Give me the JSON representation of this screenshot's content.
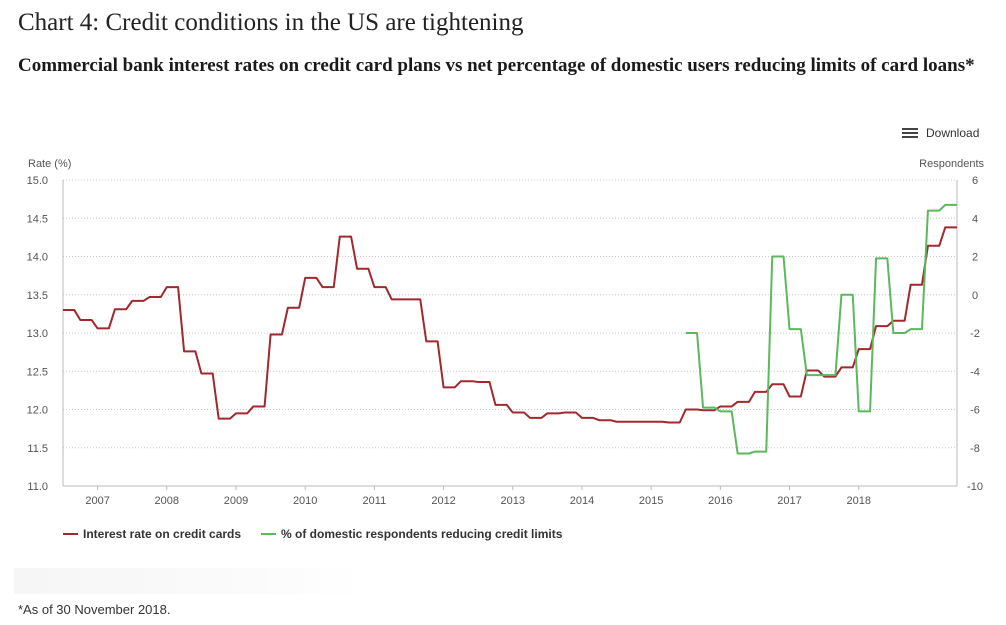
{
  "header": {
    "title": "Chart 4: Credit conditions in the US are tightening",
    "subtitle": "Commercial bank interest rates on credit card plans vs net percentage of domestic users reducing limits of card loans*"
  },
  "toolbar": {
    "download_label": "Download",
    "download_icon": "menu-icon"
  },
  "footnote": "*As of 30 November 2018.",
  "chart_data": {
    "type": "line",
    "left_axis": {
      "label": "Rate (%)",
      "ylim": [
        11.0,
        15.0
      ],
      "ticks": [
        "11.0",
        "11.5",
        "12.0",
        "12.5",
        "13.0",
        "13.5",
        "14.0",
        "14.5",
        "15.0"
      ]
    },
    "right_axis": {
      "label": "Respondents",
      "ylim": [
        -10,
        6
      ],
      "ticks": [
        "-10",
        "-8",
        "-6",
        "-4",
        "-2",
        "0",
        "2",
        "4",
        "6"
      ]
    },
    "x_axis": {
      "xlim": [
        2006.0,
        2018.92
      ],
      "ticks": [
        {
          "value": 2006.5,
          "label": "2007"
        },
        {
          "value": 2007.5,
          "label": "2008"
        },
        {
          "value": 2008.5,
          "label": "2009"
        },
        {
          "value": 2009.5,
          "label": "2010"
        },
        {
          "value": 2010.5,
          "label": "2011"
        },
        {
          "value": 2011.5,
          "label": "2012"
        },
        {
          "value": 2012.5,
          "label": "2013"
        },
        {
          "value": 2013.5,
          "label": "2014"
        },
        {
          "value": 2014.5,
          "label": "2015"
        },
        {
          "value": 2015.5,
          "label": "2016"
        },
        {
          "value": 2016.5,
          "label": "2017"
        },
        {
          "value": 2017.5,
          "label": "2018"
        }
      ]
    },
    "grid": true,
    "legend_position": "bottom-left",
    "series": [
      {
        "name": "Interest rate on credit cards",
        "axis": "left",
        "color": "#a1282c",
        "step": true,
        "points": [
          [
            2006.0,
            13.3
          ],
          [
            2006.25,
            13.17
          ],
          [
            2006.5,
            13.06
          ],
          [
            2006.75,
            13.31
          ],
          [
            2007.0,
            13.42
          ],
          [
            2007.25,
            13.47
          ],
          [
            2007.5,
            13.6
          ],
          [
            2007.75,
            12.76
          ],
          [
            2008.0,
            12.47
          ],
          [
            2008.25,
            11.88
          ],
          [
            2008.5,
            11.95
          ],
          [
            2008.75,
            12.04
          ],
          [
            2009.0,
            12.98
          ],
          [
            2009.25,
            13.33
          ],
          [
            2009.5,
            13.72
          ],
          [
            2009.75,
            13.6
          ],
          [
            2010.0,
            14.26
          ],
          [
            2010.25,
            13.84
          ],
          [
            2010.5,
            13.6
          ],
          [
            2010.75,
            13.44
          ],
          [
            2011.0,
            13.44
          ],
          [
            2011.25,
            12.89
          ],
          [
            2011.5,
            12.29
          ],
          [
            2011.75,
            12.37
          ],
          [
            2012.0,
            12.36
          ],
          [
            2012.25,
            12.06
          ],
          [
            2012.5,
            11.96
          ],
          [
            2012.75,
            11.89
          ],
          [
            2013.0,
            11.95
          ],
          [
            2013.25,
            11.96
          ],
          [
            2013.5,
            11.89
          ],
          [
            2013.75,
            11.86
          ],
          [
            2014.0,
            11.84
          ],
          [
            2014.25,
            11.84
          ],
          [
            2014.5,
            11.84
          ],
          [
            2014.75,
            11.83
          ],
          [
            2015.0,
            12.0
          ],
          [
            2015.25,
            11.99
          ],
          [
            2015.5,
            12.04
          ],
          [
            2015.75,
            12.1
          ],
          [
            2016.0,
            12.23
          ],
          [
            2016.25,
            12.33
          ],
          [
            2016.5,
            12.17
          ],
          [
            2016.75,
            12.51
          ],
          [
            2017.0,
            12.43
          ],
          [
            2017.25,
            12.55
          ],
          [
            2017.5,
            12.79
          ],
          [
            2017.75,
            13.09
          ],
          [
            2018.0,
            13.16
          ],
          [
            2018.25,
            13.63
          ],
          [
            2018.5,
            14.14
          ],
          [
            2018.75,
            14.38
          ],
          [
            2018.92,
            14.38
          ]
        ]
      },
      {
        "name": "% of domestic respondents reducing credit limits",
        "axis": "right",
        "color": "#5cb85c",
        "step": true,
        "points": [
          [
            2015.0,
            -2.0
          ],
          [
            2015.25,
            -5.9
          ],
          [
            2015.5,
            -6.1
          ],
          [
            2015.75,
            -8.3
          ],
          [
            2016.0,
            -8.2
          ],
          [
            2016.25,
            2.0
          ],
          [
            2016.5,
            -1.8
          ],
          [
            2016.75,
            -4.2
          ],
          [
            2017.0,
            -4.2
          ],
          [
            2017.25,
            0.0
          ],
          [
            2017.5,
            -6.1
          ],
          [
            2017.75,
            1.9
          ],
          [
            2018.0,
            -2.0
          ],
          [
            2018.25,
            -1.8
          ],
          [
            2018.5,
            4.4
          ],
          [
            2018.75,
            4.7
          ],
          [
            2018.92,
            4.7
          ]
        ]
      }
    ]
  }
}
